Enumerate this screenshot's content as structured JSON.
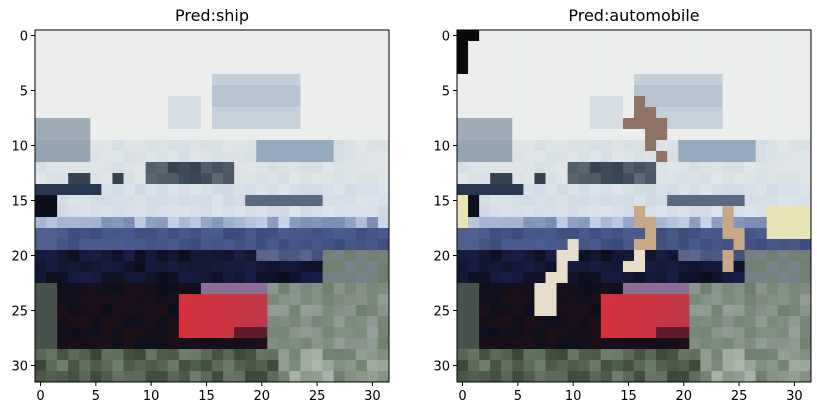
{
  "panels": [
    {
      "title": "Pred:ship",
      "image_description": "32x32 pixelated image of a ship/boat: light sky background, white superstructure with dark windows, dark blue hull band and a red-painted bow at bottom center",
      "x_ticks": [
        "0",
        "5",
        "10",
        "15",
        "20",
        "25",
        "30"
      ],
      "y_ticks": [
        "0",
        "5",
        "10",
        "15",
        "20",
        "25",
        "30"
      ]
    },
    {
      "title": "Pred:automobile",
      "image_description": "Same ship image with adversarial patches applied: a black block at top-left, brown/tan pixel clusters and a pale cream blotch across the hull",
      "x_ticks": [
        "0",
        "5",
        "10",
        "15",
        "20",
        "25",
        "30"
      ],
      "y_ticks": [
        "0",
        "5",
        "10",
        "15",
        "20",
        "25",
        "30"
      ]
    }
  ],
  "colors": {
    "sky": "#ebeeed",
    "superstructure": "#c9d3dc",
    "window_dark": "#35424f",
    "hull_blue": "#3c4c7a",
    "hull_dark": "#0d0f1e",
    "bow_red": "#d8303b",
    "water": "#6f7f6d",
    "patch_black": "#0a0a0a",
    "patch_brown": "#8f7466",
    "patch_cream": "#e8dccb",
    "patch_tan": "#c9a889",
    "patch_yellow": "#e9e4b5"
  }
}
